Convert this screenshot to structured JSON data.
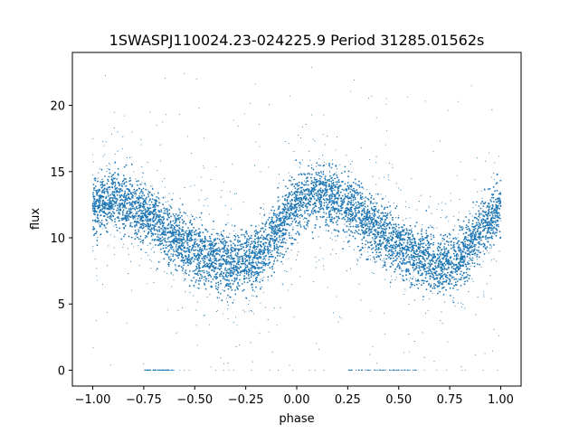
{
  "chart_data": {
    "type": "scatter",
    "title": "1SWASPJ110024.23-024225.9 Period 31285.01562s",
    "xlabel": "phase",
    "ylabel": "flux",
    "xlim": [
      -1.1,
      1.1
    ],
    "ylim": [
      -1.2,
      24.0
    ],
    "x_ticks": [
      -1.0,
      -0.75,
      -0.5,
      -0.25,
      0.0,
      0.25,
      0.5,
      0.75,
      1.0
    ],
    "x_tick_labels": [
      "−1.00",
      "−0.75",
      "−0.50",
      "−0.25",
      "0.00",
      "0.25",
      "0.50",
      "0.75",
      "1.00"
    ],
    "y_ticks": [
      0,
      5,
      10,
      15,
      20
    ],
    "y_tick_labels": [
      "0",
      "5",
      "10",
      "15",
      "20"
    ],
    "grid": false,
    "marker_color": "#1f77b4",
    "series": [
      {
        "x_range": [
          -1.0,
          1.0
        ],
        "trend": {
          "phase": [
            -1.0,
            -0.9,
            -0.75,
            -0.6,
            -0.5,
            -0.4,
            -0.3,
            -0.2,
            -0.1,
            0.0,
            0.1,
            0.25,
            0.4,
            0.5,
            0.6,
            0.7,
            0.8,
            0.9,
            1.0
          ],
          "flux": [
            12.5,
            13.0,
            12.0,
            10.0,
            9.0,
            8.3,
            8.0,
            8.5,
            10.5,
            12.5,
            13.5,
            12.5,
            10.5,
            9.5,
            8.5,
            8.0,
            8.5,
            10.5,
            12.5
          ]
        },
        "band_halfwidth": 2.8,
        "outlier_range": [
          0,
          23
        ],
        "zero_flux_segments": [
          [
            -0.75,
            -0.6
          ],
          [
            0.25,
            0.6
          ]
        ]
      }
    ]
  }
}
